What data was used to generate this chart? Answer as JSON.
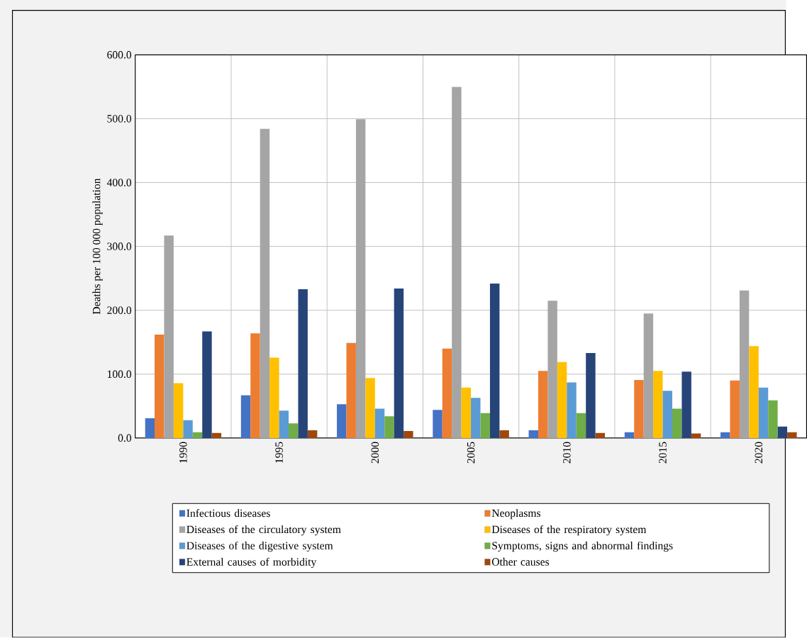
{
  "chart_data": {
    "type": "bar",
    "ylabel": "Deaths per 100 000 population",
    "categories": [
      "1990",
      "1995",
      "2000",
      "2005",
      "2010",
      "2015",
      "2020"
    ],
    "series": [
      {
        "name": "Infectious diseases",
        "color": "#4472c4",
        "values": [
          31,
          67,
          53,
          44,
          12,
          9,
          9
        ]
      },
      {
        "name": "Neoplasms",
        "color": "#ed7d31",
        "values": [
          162,
          164,
          149,
          140,
          105,
          91,
          90
        ]
      },
      {
        "name": "Diseases of the circulatory system",
        "color": "#a5a5a5",
        "values": [
          317,
          484,
          499,
          550,
          215,
          195,
          231
        ]
      },
      {
        "name": "Diseases of the respiratory system",
        "color": "#ffc000",
        "values": [
          86,
          126,
          94,
          79,
          119,
          105,
          144
        ]
      },
      {
        "name": "Diseases of the digestive system",
        "color": "#5b9bd5",
        "values": [
          28,
          43,
          46,
          63,
          87,
          74,
          79
        ]
      },
      {
        "name": "Symptoms, signs and abnormal findings",
        "color": "#70ad47",
        "values": [
          9,
          23,
          34,
          39,
          39,
          46,
          59
        ]
      },
      {
        "name": "External causes of morbidity",
        "color": "#264478",
        "values": [
          167,
          233,
          234,
          242,
          133,
          104,
          18
        ]
      },
      {
        "name": "Other causes",
        "color": "#9e480e",
        "values": [
          8,
          12,
          11,
          12,
          8,
          7,
          9
        ]
      }
    ],
    "ylim": [
      0,
      600
    ],
    "yticks": [
      {
        "value": 0,
        "label": "0.0"
      },
      {
        "value": 100,
        "label": "100.0"
      },
      {
        "value": 200,
        "label": "200.0"
      },
      {
        "value": 300,
        "label": "300.0"
      },
      {
        "value": 400,
        "label": "400.0"
      },
      {
        "value": 500,
        "label": "500.0"
      },
      {
        "value": 600,
        "label": "600.0"
      }
    ],
    "grid": true,
    "legend": "bottom"
  }
}
